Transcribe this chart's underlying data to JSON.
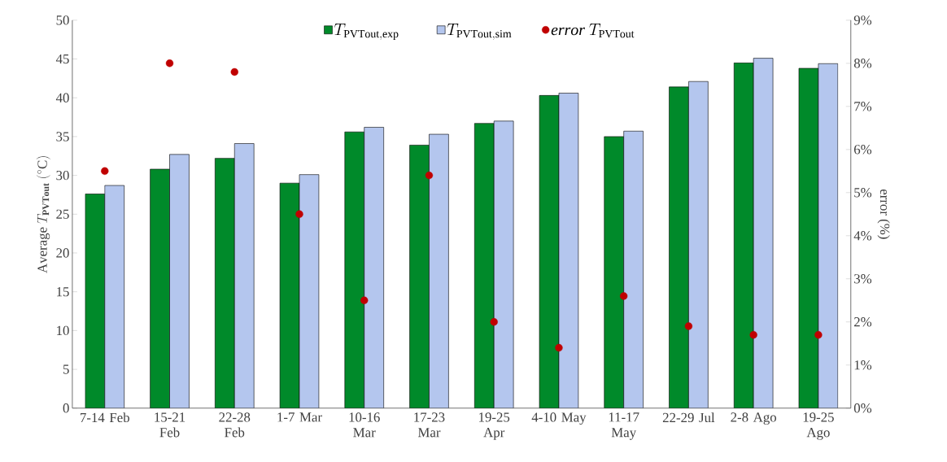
{
  "chart_data": {
    "type": "bar",
    "ylabel": "\\mathrm{Average}\\ T_{\\mathbf{PVTout}}\\ (^{\\circ}\\mathrm{C})",
    "y2label": "error (%)",
    "categories": [
      "7-14 Feb",
      "15-21 Feb",
      "22-28 Feb",
      "1-7 Mar",
      "10-16 Mar",
      "17-23 Mar",
      "19-25 Apr",
      "4-10 May",
      "11-17 May",
      "22-29 Jul",
      "2-8 Ago",
      "19-25 Ago"
    ],
    "series": [
      {
        "name": "T_{\\mathrm{PVTout,exp}}",
        "color": "#008a2a",
        "values": [
          27.6,
          30.8,
          32.2,
          29.0,
          35.6,
          33.9,
          36.7,
          40.3,
          35.0,
          41.4,
          44.5,
          43.8
        ]
      },
      {
        "name": "T_{\\mathrm{PVTout,sim}}",
        "color": "#b4c6ee",
        "values": [
          28.7,
          32.7,
          34.1,
          30.1,
          36.2,
          35.3,
          37.0,
          40.6,
          35.7,
          42.1,
          45.1,
          44.4
        ]
      },
      {
        "name": "\\mathit{error}\\ T_{\\mathrm{PVTout}}",
        "type": "scatter",
        "axis": "y2",
        "color": "#c00000",
        "values": [
          5.5,
          8.0,
          7.8,
          4.5,
          2.5,
          5.4,
          2.0,
          1.4,
          2.6,
          1.9,
          1.7,
          1.7
        ]
      }
    ],
    "ylim": [
      0,
      50
    ],
    "yticks": [
      0,
      5,
      10,
      15,
      20,
      25,
      30,
      35,
      40,
      45,
      50
    ],
    "y2lim": [
      0,
      9
    ],
    "y2ticks": [
      {
        "value": 0,
        "label": "0%"
      },
      {
        "value": 1,
        "label": "1%"
      },
      {
        "value": 2,
        "label": "2%"
      },
      {
        "value": 3,
        "label": "3%"
      },
      {
        "value": 4,
        "label": "4%"
      },
      {
        "value": 5,
        "label": "5%"
      },
      {
        "value": 6,
        "label": "6%"
      },
      {
        "value": 7,
        "label": "7%"
      },
      {
        "value": 8,
        "label": "8%"
      },
      {
        "value": 9,
        "label": "9%"
      }
    ],
    "legend": "top",
    "grid": false
  }
}
